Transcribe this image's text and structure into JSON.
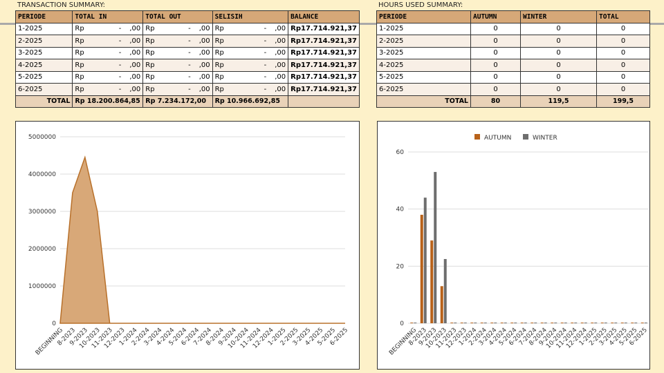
{
  "transaction": {
    "title": "TRANSACTION SUMMARY:",
    "headers": [
      "PERIODE",
      "TOTAL IN",
      "TOTAL OUT",
      "SELISIH",
      "BALANCE"
    ],
    "rows": [
      {
        "periode": "1-2025",
        "in": "-",
        "out": "-",
        "selisih": "-",
        "balance": "Rp17.714.921,37"
      },
      {
        "periode": "2-2025",
        "in": "-",
        "out": "-",
        "selisih": "-",
        "balance": "Rp17.714.921,37"
      },
      {
        "periode": "3-2025",
        "in": "-",
        "out": "-",
        "selisih": "-",
        "balance": "Rp17.714.921,37"
      },
      {
        "periode": "4-2025",
        "in": "-",
        "out": "-",
        "selisih": "-",
        "balance": "Rp17.714.921,37"
      },
      {
        "periode": "5-2025",
        "in": "-",
        "out": "-",
        "selisih": "-",
        "balance": "Rp17.714.921,37"
      },
      {
        "periode": "6-2025",
        "in": "-",
        "out": "-",
        "selisih": "-",
        "balance": "Rp17.714.921,37"
      }
    ],
    "currency": "Rp",
    "cents": ",00",
    "total": {
      "label": "TOTAL",
      "in": "Rp 18.200.864,85",
      "out": "Rp 7.234.172,00",
      "selisih": "Rp  10.966.692,85",
      "balance": ""
    }
  },
  "hours": {
    "title": "HOURS USED SUMMARY:",
    "headers": [
      "PERIODE",
      "AUTUMN",
      "WINTER",
      "TOTAL"
    ],
    "rows": [
      [
        "1-2025",
        "0",
        "0",
        "0"
      ],
      [
        "2-2025",
        "0",
        "0",
        "0"
      ],
      [
        "3-2025",
        "0",
        "0",
        "0"
      ],
      [
        "4-2025",
        "0",
        "0",
        "0"
      ],
      [
        "5-2025",
        "0",
        "0",
        "0"
      ],
      [
        "6-2025",
        "0",
        "0",
        "0"
      ]
    ],
    "total": [
      "TOTAL",
      "80",
      "119,5",
      "199,5"
    ]
  },
  "chart_data": [
    {
      "type": "area",
      "categories": [
        "BEGINNING",
        "8-2023",
        "9-2023",
        "10-2023",
        "11-2023",
        "12-2023",
        "1-2024",
        "2-2024",
        "3-2024",
        "4-2024",
        "5-2024",
        "6-2024",
        "7-2024",
        "8-2024",
        "9-2024",
        "10-2024",
        "11-2024",
        "12-2024",
        "1-2025",
        "2-2025",
        "3-2025",
        "4-2025",
        "5-2025",
        "6-2025"
      ],
      "values": [
        0,
        3500000,
        4450000,
        3000000,
        0,
        0,
        0,
        0,
        0,
        0,
        0,
        0,
        0,
        0,
        0,
        0,
        0,
        0,
        0,
        0,
        0,
        0,
        0,
        0
      ],
      "ylim": [
        0,
        5000000
      ],
      "yticks": [
        "0",
        "1000000",
        "2000000",
        "3000000",
        "4000000",
        "5000000"
      ],
      "grid": true,
      "color": "#d8a878",
      "line_color": "#b8702a"
    },
    {
      "type": "bar",
      "categories": [
        "BEGINNING",
        "8-2023",
        "9-2023",
        "10-2023",
        "11-2023",
        "12-2023",
        "1-2024",
        "2-2024",
        "3-2024",
        "4-2024",
        "5-2024",
        "6-2024",
        "7-2024",
        "8-2024",
        "9-2024",
        "10-2024",
        "11-2024",
        "12-2024",
        "1-2025",
        "2-2025",
        "3-2025",
        "4-2025",
        "5-2025",
        "6-2025"
      ],
      "series": [
        {
          "name": "AUTUMN",
          "color": "#b8621a",
          "values": [
            0,
            38,
            29,
            13,
            0,
            0,
            0,
            0,
            0,
            0,
            0,
            0,
            0,
            0,
            0,
            0,
            0,
            0,
            0,
            0,
            0,
            0,
            0,
            0
          ]
        },
        {
          "name": "WINTER",
          "color": "#6e6e6e",
          "values": [
            0,
            44,
            53,
            22.5,
            0,
            0,
            0,
            0,
            0,
            0,
            0,
            0,
            0,
            0,
            0,
            0,
            0,
            0,
            0,
            0,
            0,
            0,
            0,
            0
          ]
        }
      ],
      "ylim": [
        0,
        60
      ],
      "yticks": [
        "0",
        "20",
        "40",
        "60"
      ],
      "grid": true,
      "legend": "top"
    }
  ]
}
